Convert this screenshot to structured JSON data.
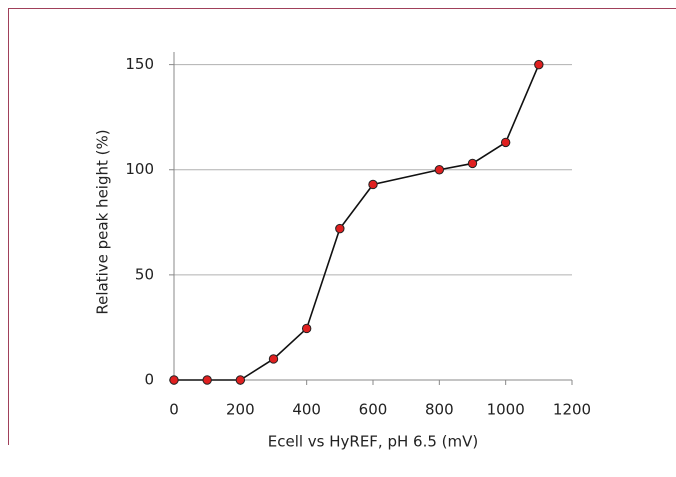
{
  "chart_data": {
    "type": "line",
    "x_label": "Ecell vs HyREF, pH 6.5 (mV)",
    "y_label": "Relative peak height (%)",
    "x": [
      0,
      100,
      200,
      300,
      400,
      500,
      600,
      800,
      900,
      1000,
      1100
    ],
    "series": [
      {
        "color": "#e02020",
        "values": [
          0,
          0,
          0,
          10,
          24.5,
          72,
          93,
          100,
          103,
          113,
          150
        ]
      }
    ],
    "xlim": [
      0,
      1200
    ],
    "xticks": [
      0,
      200,
      400,
      600,
      800,
      1000,
      1200
    ],
    "ylim": [
      0,
      156
    ],
    "yticks": [
      0,
      50,
      100,
      150
    ],
    "grid": true
  }
}
